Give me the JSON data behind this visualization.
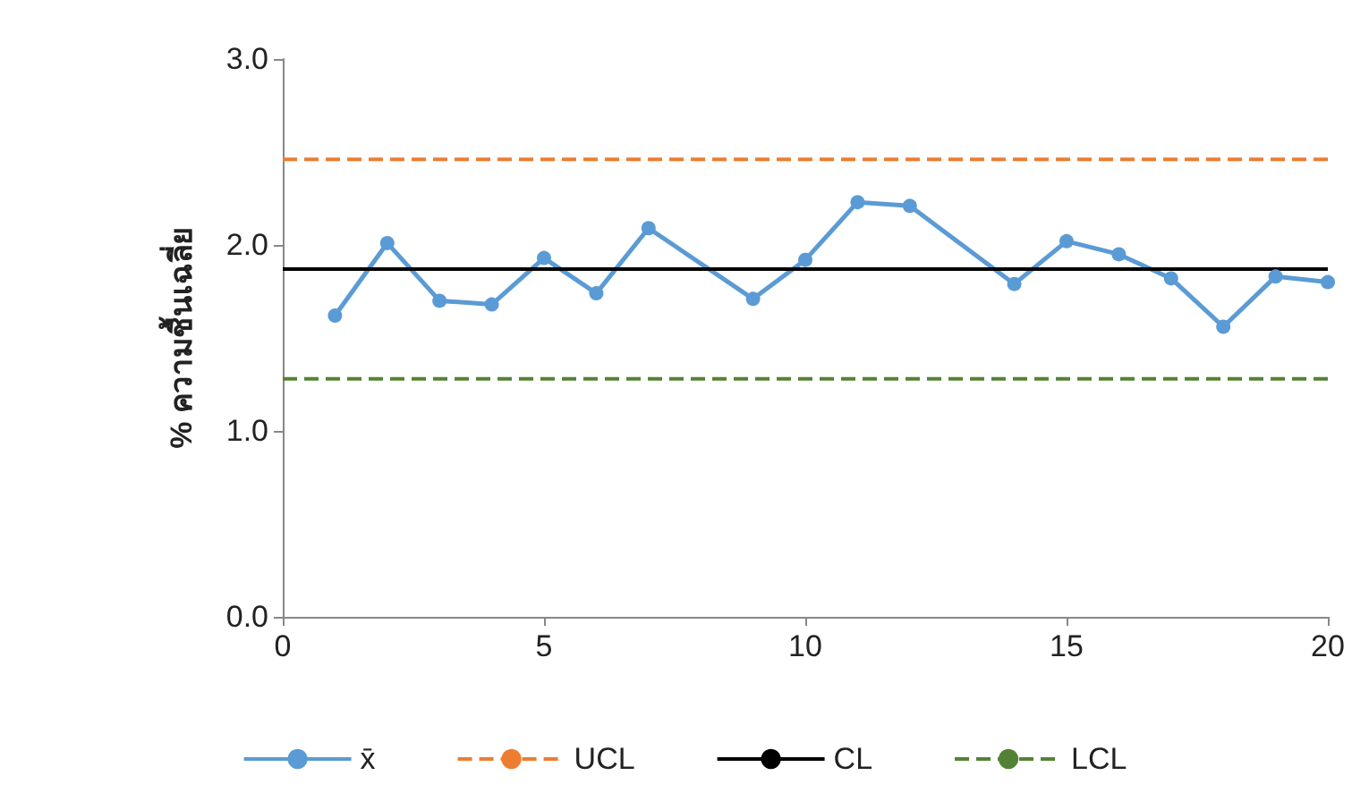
{
  "chart_data": {
    "type": "line",
    "ylabel": "% ความชื้นเฉลี่ย",
    "series": [
      {
        "name": "x̄",
        "color": "#5b9bd5",
        "x": [
          1,
          2,
          3,
          4,
          5,
          6,
          7,
          9,
          10,
          11,
          12,
          14,
          15,
          16,
          17,
          18,
          19,
          20
        ],
        "values": [
          1.62,
          2.01,
          1.7,
          1.68,
          1.93,
          1.74,
          2.09,
          1.71,
          1.92,
          2.23,
          2.21,
          1.79,
          2.02,
          1.95,
          1.82,
          1.56,
          1.83,
          1.8
        ]
      }
    ],
    "ref_lines": [
      {
        "axis": "y",
        "value": 2.46,
        "label": "UCL",
        "color": "#ed7d31",
        "line_style": "dashed"
      },
      {
        "axis": "y",
        "value": 1.87,
        "label": "CL",
        "color": "#000000",
        "line_style": "solid"
      },
      {
        "axis": "y",
        "value": 1.28,
        "label": "LCL",
        "color": "#548235",
        "line_style": "dashed"
      }
    ],
    "xlim": [
      0,
      20
    ],
    "xticks": [
      0,
      5,
      10,
      15,
      20
    ],
    "ylim": [
      0,
      3
    ],
    "yticks": [
      {
        "value": 0,
        "label": "0.0"
      },
      {
        "value": 1,
        "label": "1.0"
      },
      {
        "value": 2,
        "label": "2.0"
      },
      {
        "value": 3,
        "label": "3.0"
      }
    ],
    "grid": false,
    "legend": "bottom",
    "marker": "circle",
    "line_style": "solid"
  }
}
